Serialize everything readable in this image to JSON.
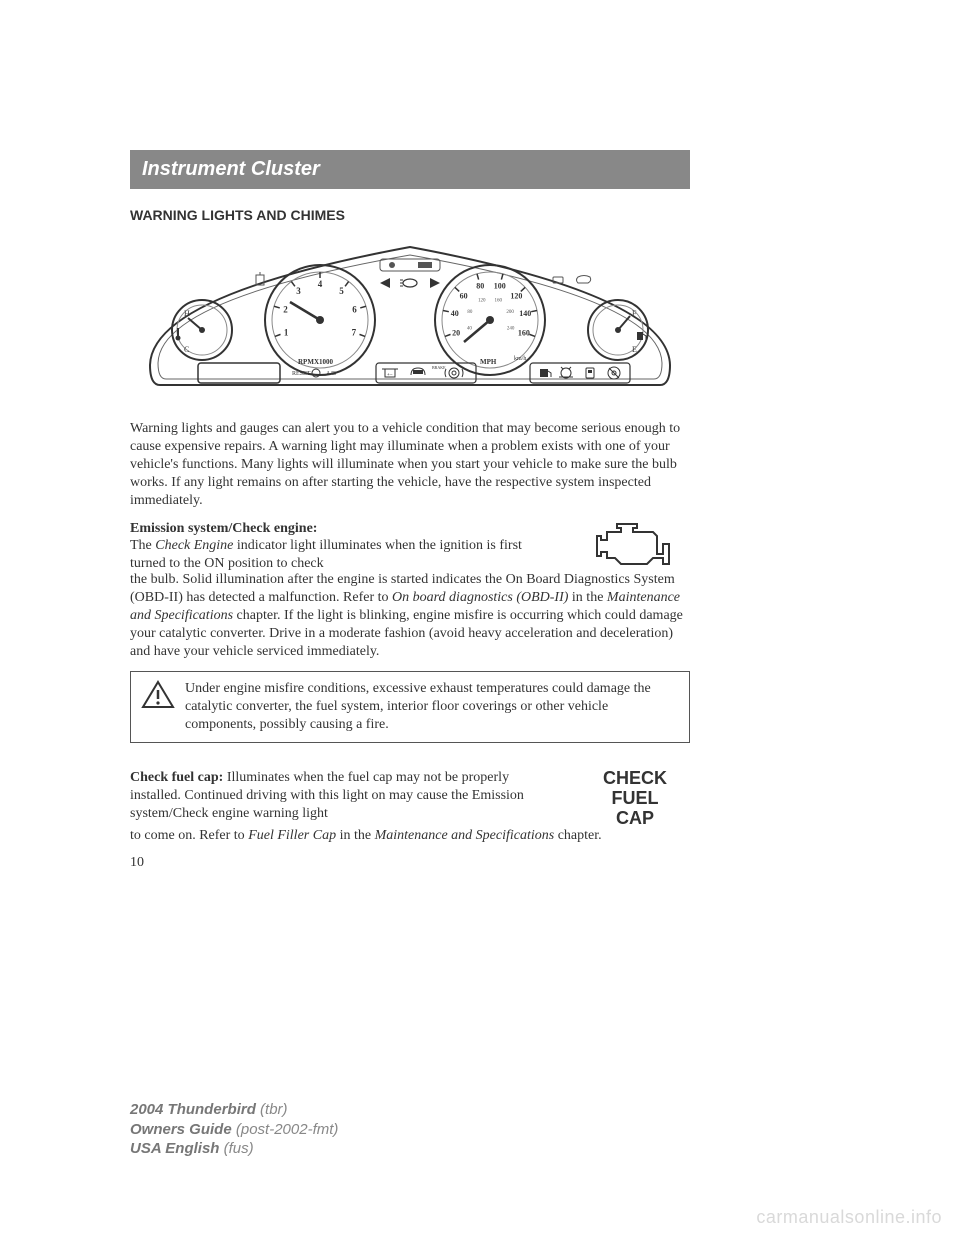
{
  "chapter": {
    "title": "Instrument Cluster"
  },
  "section": {
    "heading": "WARNING LIGHTS AND CHIMES"
  },
  "cluster": {
    "rpm": {
      "label": "RPMX1000",
      "ticks": [
        "1",
        "2",
        "3",
        "4",
        "5",
        "6",
        "7"
      ]
    },
    "speedo": {
      "label": "MPH",
      "kmh_label": "km/h",
      "mph_ticks": [
        "20",
        "40",
        "60",
        "80",
        "100",
        "120",
        "140",
        "160"
      ],
      "kmh_ticks": [
        "40",
        "80",
        "120",
        "160",
        "200",
        "240"
      ]
    },
    "temp": {
      "hot": "H",
      "cold": "C"
    },
    "fuel": {
      "full": "F",
      "empty": "E"
    },
    "reset_label": "RESET",
    "ab_label": "A/B"
  },
  "intro_para": "Warning lights and gauges can alert you to a vehicle condition that may become serious enough to cause expensive repairs. A warning light may illuminate when a problem exists with one of your vehicle's functions. Many lights will illuminate when you start your vehicle to make sure the bulb works. If any light remains on after starting the vehicle, have the respective system inspected immediately.",
  "emission": {
    "heading": "Emission system/Check engine:",
    "lead_pre": "The ",
    "lead_em": "Check Engine",
    "lead_post": " indicator light illuminates when the ignition is first turned to the ON position to check",
    "cont_pre": "the bulb. Solid illumination after the engine is started indicates the On Board Diagnostics System (OBD-II) has detected a malfunction. Refer to ",
    "cont_em1": "On board diagnostics (OBD-II)",
    "cont_mid": " in the ",
    "cont_em2": "Maintenance and Specifications",
    "cont_post": " chapter. If the light is blinking, engine misfire is occurring which could damage your catalytic converter. Drive in a moderate fashion (avoid heavy acceleration and deceleration) and have your vehicle serviced immediately."
  },
  "warning_box": {
    "text": "Under engine misfire conditions, excessive exhaust temperatures could damage the catalytic converter, the fuel system, interior floor coverings or other vehicle components, possibly causing a fire."
  },
  "fuel_cap": {
    "heading": "Check fuel cap:",
    "lead": " Illuminates when the fuel cap may not be properly installed. Continued driving with this light on may cause the Emission system/Check engine warning light",
    "cont_pre": "to come on. Refer to ",
    "cont_em1": "Fuel Filler Cap",
    "cont_mid": " in the ",
    "cont_em2": "Maintenance and Specifications",
    "cont_post": " chapter.",
    "badge_l1": "CHECK",
    "badge_l2": "FUEL",
    "badge_l3": "CAP"
  },
  "page_number": "10",
  "footer": {
    "line1_strong": "2004 Thunderbird",
    "line1_rest": " (tbr)",
    "line2_strong": "Owners Guide",
    "line2_rest": " (post-2002-fmt)",
    "line3_strong": "USA English",
    "line3_rest": " (fus)"
  },
  "watermark": "carmanualsonline.info"
}
